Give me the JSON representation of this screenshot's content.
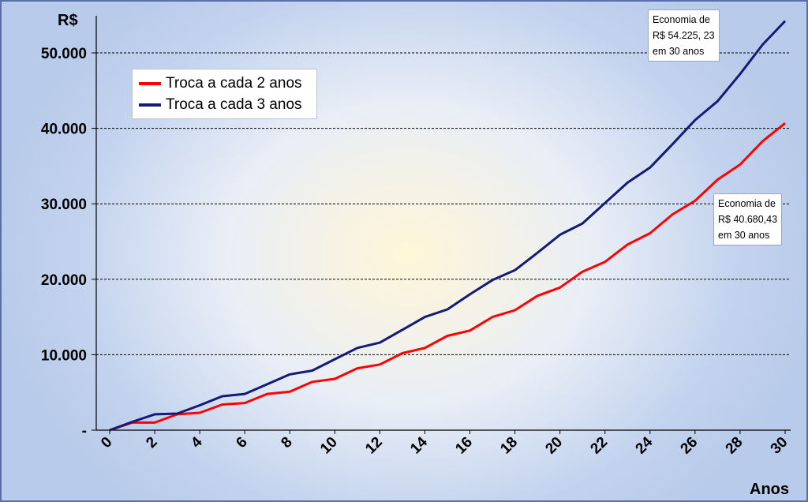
{
  "chart_data": {
    "type": "line",
    "ylabel": "R$",
    "xlabel": "Anos",
    "ylim": [
      0,
      55000
    ],
    "xlim": [
      0,
      30
    ],
    "y_ticks": [
      {
        "value": 0,
        "label": "-"
      },
      {
        "value": 10000,
        "label": "10.000"
      },
      {
        "value": 20000,
        "label": "20.000"
      },
      {
        "value": 30000,
        "label": "30.000"
      },
      {
        "value": 40000,
        "label": "40.000"
      },
      {
        "value": 50000,
        "label": "50.000"
      }
    ],
    "x_ticks": [
      "0",
      "2",
      "4",
      "6",
      "8",
      "10",
      "12",
      "14",
      "16",
      "18",
      "20",
      "22",
      "24",
      "26",
      "28",
      "30"
    ],
    "grid": "horizontal dashed",
    "legend_position": "top-left",
    "series": [
      {
        "name": "Troca a cada 2 anos",
        "color": "#ff0000",
        "x": [
          0,
          1,
          2,
          3,
          4,
          5,
          6,
          7,
          8,
          9,
          10,
          11,
          12,
          13,
          14,
          15,
          16,
          17,
          18,
          19,
          20,
          21,
          22,
          23,
          24,
          25,
          26,
          27,
          28,
          29,
          30
        ],
        "values": [
          0,
          1000,
          1000,
          2100,
          2300,
          3400,
          3600,
          4800,
          5100,
          6400,
          6800,
          8200,
          8700,
          10200,
          10900,
          12500,
          13200,
          15000,
          15900,
          17800,
          18900,
          21000,
          22300,
          24600,
          26100,
          28600,
          30400,
          33200,
          35200,
          38300,
          40680.43
        ]
      },
      {
        "name": "Troca a cada 3 anos",
        "color": "#141a78",
        "x": [
          0,
          1,
          2,
          3,
          4,
          5,
          6,
          7,
          8,
          9,
          10,
          11,
          12,
          13,
          14,
          15,
          16,
          17,
          18,
          19,
          20,
          21,
          22,
          23,
          24,
          25,
          26,
          27,
          28,
          29,
          30
        ],
        "values": [
          0,
          1100,
          2100,
          2200,
          3300,
          4500,
          4800,
          6100,
          7400,
          7900,
          9400,
          10900,
          11600,
          13300,
          15000,
          16000,
          18000,
          19900,
          21200,
          23500,
          25900,
          27400,
          30100,
          32800,
          34800,
          37900,
          41100,
          43600,
          47200,
          51100,
          54225.23
        ]
      }
    ],
    "annotations": [
      {
        "lines": [
          "Economia de",
          "R$ 54.225, 23",
          "em 30 anos"
        ]
      },
      {
        "lines": [
          "Economia de",
          "R$ 40.680,43",
          "em 30 anos"
        ]
      }
    ]
  }
}
